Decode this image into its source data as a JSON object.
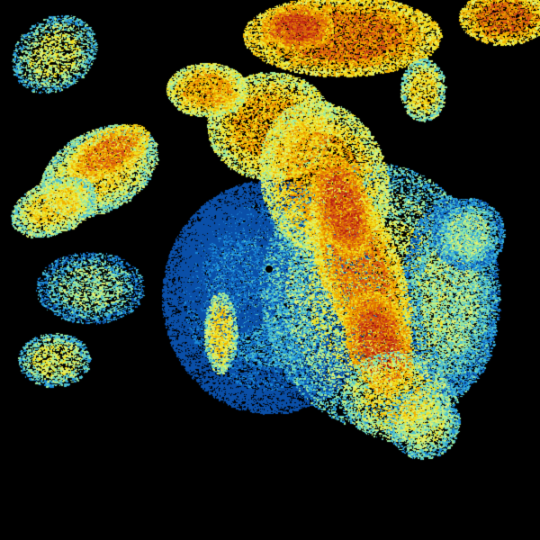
{
  "radar": {
    "background": "#000000",
    "palette": [
      "#0a4fa8",
      "#1a8ad8",
      "#4cc0d0",
      "#98e8a0",
      "#e0f070",
      "#f0e020",
      "#f0b000",
      "#e07800",
      "#d04818",
      "#b82010"
    ],
    "site_marker": "radar-site-dot"
  }
}
